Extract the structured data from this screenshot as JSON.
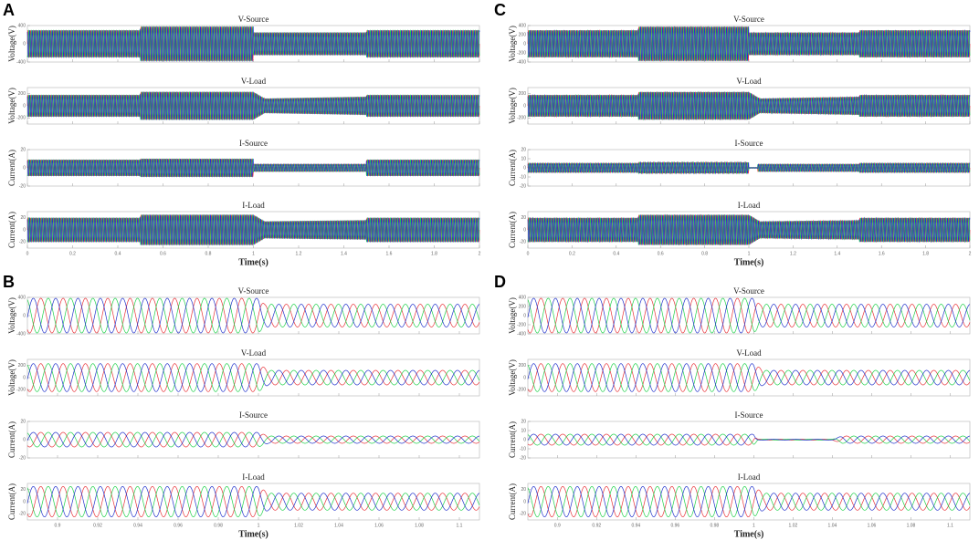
{
  "panels": [
    {
      "label": "A",
      "xlabel": "Time(s)",
      "xlim": [
        0,
        2
      ],
      "xticks": [
        0,
        0.2,
        0.4,
        0.6,
        0.8,
        1,
        1.2,
        1.4,
        1.6,
        1.8,
        2
      ],
      "frequency": 90,
      "colors": [
        "#e8343a",
        "#1fd14a",
        "#2233cc"
      ],
      "subplots": [
        {
          "title": "V-Source",
          "ylabel": "Voltage(V)",
          "ylim": [
            -400,
            400
          ],
          "yticks": [
            -400,
            0,
            400
          ],
          "envelope": {
            "x": [
              0,
              0.5,
              0.5,
              1,
              1,
              1.5,
              1.5,
              2
            ],
            "values": [
              300,
              300,
              380,
              380,
              250,
              250,
              300,
              300
            ]
          }
        },
        {
          "title": "V-Load",
          "ylabel": "Voltage(V)",
          "ylim": [
            -300,
            300
          ],
          "yticks": [
            -200,
            0,
            200
          ],
          "envelope": {
            "x": [
              0,
              0.5,
              0.5,
              1,
              1.05,
              1.5,
              1.5,
              2
            ],
            "values": [
              180,
              180,
              230,
              230,
              120,
              150,
              180,
              180
            ]
          }
        },
        {
          "title": "I-Source",
          "ylabel": "Current(A)",
          "ylim": [
            -20,
            20
          ],
          "yticks": [
            -20,
            0,
            20
          ],
          "envelope": {
            "x": [
              0,
              0.5,
              0.5,
              1,
              1,
              1.5,
              1.5,
              2
            ],
            "values": [
              9,
              9,
              10,
              10,
              4,
              4,
              9,
              9
            ]
          }
        },
        {
          "title": "I-Load",
          "ylabel": "Current(A)",
          "ylim": [
            -30,
            30
          ],
          "yticks": [
            -20,
            0,
            20
          ],
          "envelope": {
            "x": [
              0,
              0.5,
              0.5,
              1,
              1.05,
              1.5,
              1.5,
              2
            ],
            "values": [
              20,
              20,
              25,
              25,
              14,
              16,
              20,
              20
            ]
          }
        }
      ]
    },
    {
      "label": "B",
      "xlabel": "Time(s)",
      "xlim": [
        0.885,
        1.11
      ],
      "xticks": [
        0.9,
        0.92,
        0.94,
        0.96,
        0.98,
        1,
        1.02,
        1.04,
        1.06,
        1.08,
        1.1
      ],
      "frequency": 90,
      "colors": [
        "#e8343a",
        "#1fd14a",
        "#2233cc"
      ],
      "subplots": [
        {
          "title": "V-Source",
          "ylabel": "Voltage(V)",
          "ylim": [
            -400,
            400
          ],
          "yticks": [
            -400,
            0,
            400
          ],
          "envelope": {
            "x": [
              0.885,
              1,
              1.003,
              1.11
            ],
            "values": [
              380,
              380,
              250,
              250
            ]
          }
        },
        {
          "title": "V-Load",
          "ylabel": "Voltage(V)",
          "ylim": [
            -300,
            300
          ],
          "yticks": [
            -200,
            0,
            200
          ],
          "envelope": {
            "x": [
              0.885,
              1,
              1.005,
              1.11
            ],
            "values": [
              230,
              230,
              120,
              120
            ]
          }
        },
        {
          "title": "I-Source",
          "ylabel": "Current(A)",
          "ylim": [
            -20,
            20
          ],
          "yticks": [
            -20,
            0,
            20
          ],
          "envelope": {
            "x": [
              0.885,
              1,
              1.005,
              1.11
            ],
            "values": [
              8,
              8,
              4,
              4
            ]
          }
        },
        {
          "title": "I-Load",
          "ylabel": "Current(A)",
          "ylim": [
            -30,
            30
          ],
          "yticks": [
            -20,
            0,
            20
          ],
          "envelope": {
            "x": [
              0.885,
              1,
              1.005,
              1.11
            ],
            "values": [
              25,
              25,
              14,
              14
            ]
          }
        }
      ]
    },
    {
      "label": "C",
      "xlabel": "Time(s)",
      "xlim": [
        0,
        2
      ],
      "xticks": [
        0,
        0.2,
        0.4,
        0.6,
        0.8,
        1,
        1.2,
        1.4,
        1.6,
        1.8,
        2
      ],
      "frequency": 90,
      "colors": [
        "#e8343a",
        "#1fd14a",
        "#2233cc"
      ],
      "subplots": [
        {
          "title": "V-Source",
          "ylabel": "Voltage(V)",
          "ylim": [
            -400,
            400
          ],
          "yticks": [
            -400,
            -200,
            0,
            200,
            400
          ],
          "envelope": {
            "x": [
              0,
              0.5,
              0.5,
              1,
              1,
              1.5,
              1.5,
              2
            ],
            "values": [
              300,
              300,
              380,
              380,
              250,
              250,
              300,
              300
            ]
          }
        },
        {
          "title": "V-Load",
          "ylabel": "Voltage(V)",
          "ylim": [
            -300,
            300
          ],
          "yticks": [
            -200,
            0,
            200
          ],
          "envelope": {
            "x": [
              0,
              0.5,
              0.5,
              1,
              1.05,
              1.5,
              1.5,
              2
            ],
            "values": [
              180,
              180,
              230,
              230,
              120,
              150,
              180,
              180
            ]
          }
        },
        {
          "title": "I-Source",
          "ylabel": "Current(A)",
          "ylim": [
            -20,
            20
          ],
          "yticks": [
            -20,
            -10,
            0,
            10,
            20
          ],
          "envelope": {
            "x": [
              0,
              0.5,
              0.5,
              1,
              1,
              1.04,
              1.04,
              1.5,
              1.5,
              2
            ],
            "values": [
              5,
              5,
              6,
              6,
              0.5,
              0.5,
              4,
              4,
              5,
              5
            ]
          }
        },
        {
          "title": "I-Load",
          "ylabel": "Current(A)",
          "ylim": [
            -30,
            30
          ],
          "yticks": [
            -20,
            0,
            20
          ],
          "envelope": {
            "x": [
              0,
              0.5,
              0.5,
              1,
              1.05,
              1.5,
              1.5,
              2
            ],
            "values": [
              20,
              20,
              25,
              25,
              14,
              16,
              20,
              20
            ]
          }
        }
      ]
    },
    {
      "label": "D",
      "xlabel": "Time(s)",
      "xlim": [
        0.885,
        1.11
      ],
      "xticks": [
        0.9,
        0.92,
        0.94,
        0.96,
        0.98,
        1,
        1.02,
        1.04,
        1.06,
        1.08,
        1.1
      ],
      "frequency": 90,
      "colors": [
        "#e8343a",
        "#1fd14a",
        "#2233cc"
      ],
      "subplots": [
        {
          "title": "V-Source",
          "ylabel": "Voltage(V)",
          "ylim": [
            -400,
            400
          ],
          "yticks": [
            -400,
            -200,
            0,
            200,
            400
          ],
          "envelope": {
            "x": [
              0.885,
              1,
              1.003,
              1.11
            ],
            "values": [
              380,
              380,
              250,
              250
            ]
          }
        },
        {
          "title": "V-Load",
          "ylabel": "Voltage(V)",
          "ylim": [
            -300,
            300
          ],
          "yticks": [
            -200,
            0,
            200
          ],
          "envelope": {
            "x": [
              0.885,
              1,
              1.005,
              1.11
            ],
            "values": [
              230,
              230,
              120,
              120
            ]
          }
        },
        {
          "title": "I-Source",
          "ylabel": "Current(A)",
          "ylim": [
            -20,
            20
          ],
          "yticks": [
            -20,
            -10,
            0,
            10,
            20
          ],
          "envelope": {
            "x": [
              0.885,
              1,
              1.002,
              1.04,
              1.045,
              1.11
            ],
            "values": [
              6,
              6,
              0.5,
              0.5,
              4,
              4
            ]
          }
        },
        {
          "title": "I-Load",
          "ylabel": "Current(A)",
          "ylim": [
            -30,
            30
          ],
          "yticks": [
            -20,
            0,
            20
          ],
          "envelope": {
            "x": [
              0.885,
              1,
              1.005,
              1.11
            ],
            "values": [
              25,
              25,
              14,
              14
            ]
          }
        }
      ]
    }
  ]
}
